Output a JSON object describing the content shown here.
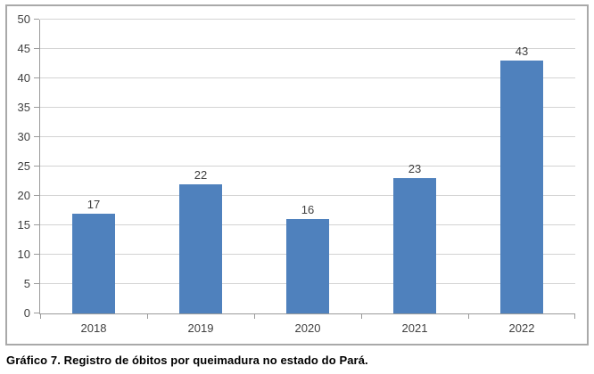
{
  "figure": {
    "caption": "Gráfico 7. Registro de óbitos por queimadura no estado do Pará."
  },
  "chart_data": {
    "type": "bar",
    "title": "",
    "xlabel": "",
    "ylabel": "",
    "categories": [
      "2018",
      "2019",
      "2020",
      "2021",
      "2022"
    ],
    "values": [
      17,
      22,
      16,
      23,
      43
    ],
    "data_labels": [
      "17",
      "22",
      "16",
      "23",
      "43"
    ],
    "ylim": [
      0,
      50
    ],
    "ytick_step": 5,
    "yticks": [
      "0",
      "5",
      "10",
      "15",
      "20",
      "25",
      "30",
      "35",
      "40",
      "45",
      "50"
    ],
    "grid": true,
    "legend": "none",
    "colors": {
      "bar": "#4F81BD",
      "gridline": "#D3D3D3",
      "axis": "#9B9B9B",
      "tick": "#9B9B9B",
      "text": "#3F3F3F",
      "frame_border": "#A9A9A9"
    }
  }
}
